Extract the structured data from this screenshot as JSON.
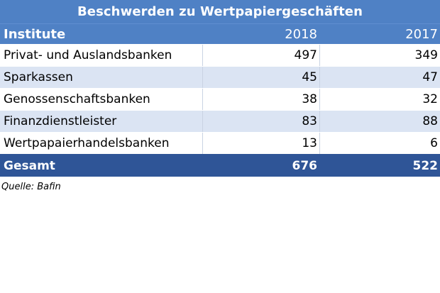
{
  "title": "Beschwerden zu Wertpapiergeschäften",
  "header": {
    "col_institute": "Institute",
    "col_2018": "2018",
    "col_2017": "2017"
  },
  "rows": [
    {
      "name": "Privat- und Auslandsbanken",
      "y2018": "497",
      "y2017": "349"
    },
    {
      "name": "Sparkassen",
      "y2018": "45",
      "y2017": "47"
    },
    {
      "name": "Genossenschaftsbanken",
      "y2018": "38",
      "y2017": "32"
    },
    {
      "name": "Finanzdienstleister",
      "y2018": "83",
      "y2017": "88"
    },
    {
      "name": "Wertpapaierhandelsbanken",
      "y2018": "13",
      "y2017": "6"
    }
  ],
  "total": {
    "name": "Gesamt",
    "y2018": "676",
    "y2017": "522"
  },
  "source": "Quelle: Bafin",
  "colors": {
    "header_blue": "#4f81c5",
    "total_blue": "#2f5597",
    "row_alt": "#dbe4f3"
  }
}
